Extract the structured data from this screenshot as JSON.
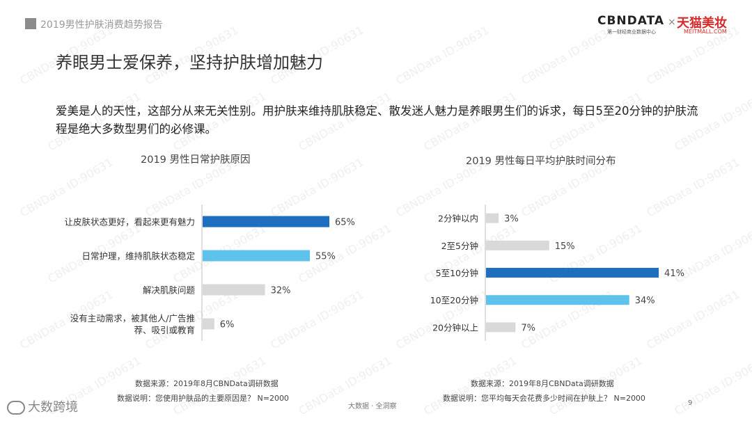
{
  "header": {
    "report_title": "2019男性护肤消费趋势报告",
    "logo_cbn": "CBNDATA",
    "logo_cbn_sub": "第一财经商业数据中心",
    "logo_x": "×",
    "logo_tmall": "天猫美妆",
    "logo_tmall_sub": "MEITMALL.COM"
  },
  "page_title": "养眼男士爱保养，坚持护肤增加魅力",
  "description": "爱美是人的天性，这部分从来无关性别。用护肤来维持肌肤稳定、散发迷人魅力是养眼男生们的诉求，每日5至20分钟的护肤流程是绝大多数型男们的必修课。",
  "watermark_text": "CBNData ID:90631",
  "chart_data": [
    {
      "type": "bar",
      "orientation": "horizontal",
      "title": "2019 男性日常护肤原因",
      "categories": [
        [
          "让皮肤状态更好，看起来更有魅力"
        ],
        [
          "日常护理，维持肌肤状态稳定"
        ],
        [
          "解决肌肤问题"
        ],
        [
          "没有主动需求，被其他人/广告推",
          "荐、吸引或教育"
        ]
      ],
      "values": [
        65,
        55,
        32,
        6
      ],
      "value_labels": [
        "65%",
        "55%",
        "32%",
        "6%"
      ],
      "bar_colors": [
        "#1f6fc0",
        "#5ec3ec",
        "#d9d9d9",
        "#d9d9d9"
      ],
      "xlim": [
        0,
        100
      ],
      "grid": false,
      "legend": "none"
    },
    {
      "type": "bar",
      "orientation": "horizontal",
      "title": "2019 男性每日平均护肤时间分布",
      "categories": [
        [
          "2分钟以内"
        ],
        [
          "2至5分钟"
        ],
        [
          "5至10分钟"
        ],
        [
          "10至20分钟"
        ],
        [
          "20分钟以上"
        ]
      ],
      "values": [
        3,
        15,
        41,
        34,
        7
      ],
      "value_labels": [
        "3%",
        "15%",
        "41%",
        "34%",
        "7%"
      ],
      "bar_colors": [
        "#d9d9d9",
        "#d9d9d9",
        "#1f6fc0",
        "#5ec3ec",
        "#d9d9d9"
      ],
      "xlim": [
        0,
        100
      ],
      "grid": false,
      "legend": "none"
    }
  ],
  "footers": {
    "left_source": "数据来源：2019年8月CBNData调研数据",
    "left_note": "数据说明：您使用护肤品的主要原因是？ N=2000",
    "right_source": "数据来源：2019年8月CBNData调研数据",
    "right_note": "数据说明：您平均每天会花费多少时间在护肤上？ N=2000",
    "center": "大数据 · 全洞察",
    "page_number": "9",
    "brand_watermark": "大数跨境"
  }
}
